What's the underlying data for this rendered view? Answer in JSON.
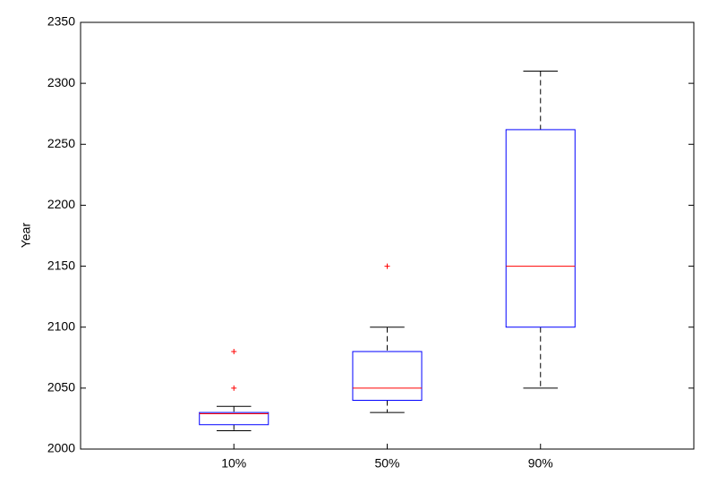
{
  "chart_data": {
    "type": "box",
    "y_label": "Year",
    "categories": [
      "10%",
      "50%",
      "90%"
    ],
    "boxes": [
      {
        "whisker_low": 2015,
        "q1": 2020,
        "median": 2029,
        "q3": 2030,
        "whisker_high": 2035,
        "outliers": [
          2050,
          2080
        ]
      },
      {
        "whisker_low": 2030,
        "q1": 2040,
        "median": 2050,
        "q3": 2080,
        "whisker_high": 2100,
        "outliers": [
          2150
        ]
      },
      {
        "whisker_low": 2050,
        "q1": 2100,
        "median": 2150,
        "q3": 2262,
        "whisker_high": 2310,
        "outliers": []
      }
    ],
    "box_color": "#0000ff",
    "median_color": "#ff0000",
    "whisker_color": "#000000",
    "outlier_color": "#ff0000",
    "ylim": [
      2000,
      2350
    ],
    "yticks": [
      2000,
      2050,
      2100,
      2150,
      2200,
      2250,
      2300,
      2350
    ],
    "grid": false
  }
}
